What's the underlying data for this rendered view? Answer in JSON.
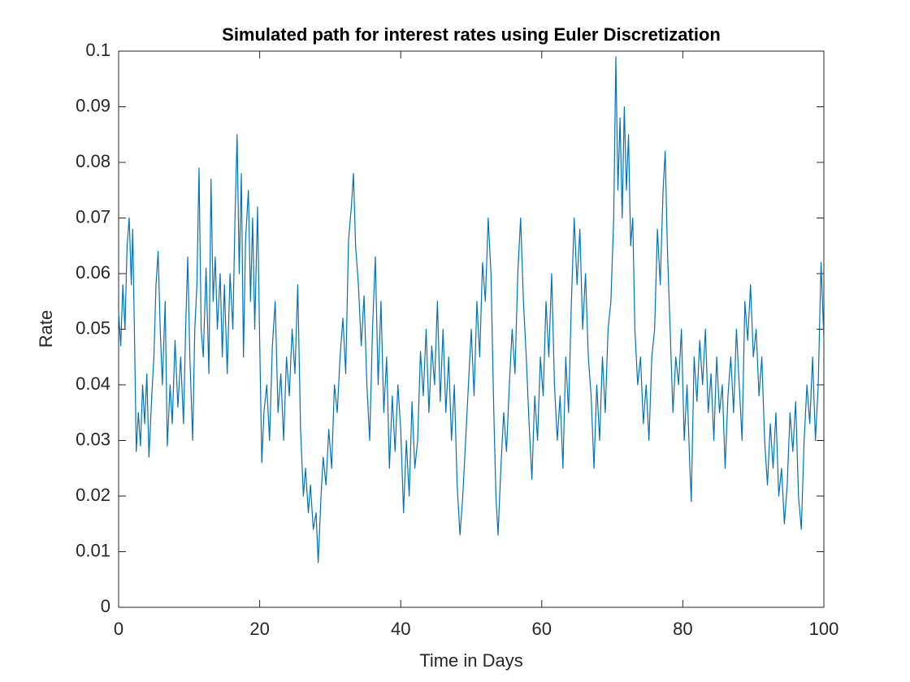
{
  "chart_data": {
    "type": "line",
    "title": "Simulated path for interest rates using Euler Discretization",
    "x_label": "Time in Days",
    "y_label": "Rate",
    "color": "#0072bd",
    "xlim": [
      0,
      100
    ],
    "xticks": [
      0,
      20,
      40,
      60,
      80,
      100
    ],
    "ylim": [
      0,
      0.1
    ],
    "yticks": [
      0,
      0.01,
      0.02,
      0.03,
      0.04,
      0.05,
      0.06,
      0.07,
      0.08,
      0.09,
      0.1
    ],
    "grid": false,
    "x": [
      0,
      0.3,
      0.6,
      0.9,
      1.2,
      1.5,
      1.8,
      2.0,
      2.3,
      2.5,
      2.8,
      3.1,
      3.4,
      3.7,
      4.0,
      4.3,
      4.7,
      5.0,
      5.3,
      5.6,
      5.9,
      6.2,
      6.6,
      6.9,
      7.3,
      7.6,
      8.0,
      8.4,
      8.8,
      9.2,
      9.5,
      9.8,
      10.1,
      10.5,
      10.8,
      11.1,
      11.4,
      11.7,
      12.0,
      12.4,
      12.8,
      13.1,
      13.4,
      13.7,
      14.0,
      14.4,
      14.7,
      15.0,
      15.4,
      15.8,
      16.2,
      16.5,
      16.8,
      17.1,
      17.4,
      17.7,
      18.0,
      18.4,
      18.7,
      19.0,
      19.3,
      19.7,
      20.0,
      20.3,
      20.6,
      21.0,
      21.4,
      21.8,
      22.2,
      22.6,
      23.0,
      23.4,
      23.8,
      24.2,
      24.6,
      25.0,
      25.4,
      25.8,
      26.2,
      26.5,
      26.9,
      27.2,
      27.6,
      28.0,
      28.3,
      28.7,
      29.0,
      29.4,
      29.8,
      30.2,
      30.6,
      31.0,
      31.4,
      31.8,
      32.2,
      32.6,
      33.0,
      33.3,
      33.6,
      34.0,
      34.4,
      34.8,
      35.2,
      35.6,
      36.0,
      36.4,
      36.8,
      37.2,
      37.6,
      38.0,
      38.4,
      38.8,
      39.2,
      39.6,
      40.0,
      40.4,
      40.8,
      41.2,
      41.6,
      42.0,
      42.4,
      42.8,
      43.2,
      43.6,
      44.0,
      44.4,
      44.8,
      45.2,
      45.6,
      46.0,
      46.4,
      46.8,
      47.2,
      47.6,
      48.0,
      48.4,
      48.8,
      49.2,
      49.6,
      50.0,
      50.4,
      50.8,
      51.2,
      51.6,
      52.0,
      52.4,
      52.8,
      53.2,
      53.5,
      53.8,
      54.2,
      54.6,
      55.0,
      55.4,
      55.8,
      56.2,
      56.6,
      57.0,
      57.4,
      57.8,
      58.2,
      58.6,
      59.0,
      59.4,
      59.8,
      60.2,
      60.6,
      61.0,
      61.4,
      61.8,
      62.2,
      62.6,
      63.0,
      63.4,
      63.8,
      64.2,
      64.6,
      65.0,
      65.4,
      65.8,
      66.2,
      66.6,
      67.0,
      67.4,
      67.8,
      68.2,
      68.6,
      69.0,
      69.4,
      69.8,
      70.2,
      70.5,
      70.8,
      71.1,
      71.4,
      71.7,
      72.0,
      72.3,
      72.6,
      72.9,
      73.2,
      73.6,
      74.0,
      74.4,
      74.8,
      75.2,
      75.6,
      76.0,
      76.4,
      76.8,
      77.2,
      77.5,
      77.8,
      78.2,
      78.6,
      79.0,
      79.4,
      79.8,
      80.2,
      80.6,
      81.0,
      81.2,
      81.6,
      82.0,
      82.4,
      82.8,
      83.2,
      83.6,
      84.0,
      84.4,
      84.8,
      85.2,
      85.6,
      86.0,
      86.4,
      86.8,
      87.2,
      87.6,
      88.0,
      88.4,
      88.8,
      89.2,
      89.6,
      90.0,
      90.4,
      90.8,
      91.2,
      91.6,
      92.0,
      92.4,
      92.8,
      93.2,
      93.6,
      94.0,
      94.4,
      94.8,
      95.2,
      95.6,
      96.0,
      96.4,
      96.8,
      97.2,
      97.6,
      98.0,
      98.4,
      98.8,
      99.2,
      99.6,
      100
    ],
    "values": [
      0.053,
      0.047,
      0.058,
      0.05,
      0.065,
      0.07,
      0.058,
      0.068,
      0.045,
      0.028,
      0.035,
      0.029,
      0.04,
      0.033,
      0.042,
      0.027,
      0.038,
      0.045,
      0.058,
      0.064,
      0.05,
      0.04,
      0.055,
      0.029,
      0.04,
      0.033,
      0.048,
      0.036,
      0.045,
      0.033,
      0.05,
      0.063,
      0.045,
      0.03,
      0.05,
      0.058,
      0.079,
      0.05,
      0.045,
      0.061,
      0.042,
      0.077,
      0.055,
      0.063,
      0.05,
      0.06,
      0.045,
      0.058,
      0.042,
      0.06,
      0.05,
      0.07,
      0.085,
      0.06,
      0.078,
      0.045,
      0.066,
      0.075,
      0.055,
      0.07,
      0.05,
      0.072,
      0.048,
      0.026,
      0.035,
      0.04,
      0.03,
      0.047,
      0.055,
      0.035,
      0.042,
      0.03,
      0.045,
      0.038,
      0.05,
      0.042,
      0.058,
      0.032,
      0.02,
      0.025,
      0.017,
      0.022,
      0.014,
      0.017,
      0.008,
      0.02,
      0.027,
      0.022,
      0.032,
      0.025,
      0.04,
      0.035,
      0.045,
      0.052,
      0.042,
      0.066,
      0.072,
      0.078,
      0.065,
      0.058,
      0.047,
      0.056,
      0.04,
      0.03,
      0.05,
      0.063,
      0.04,
      0.055,
      0.035,
      0.045,
      0.025,
      0.038,
      0.028,
      0.04,
      0.032,
      0.017,
      0.03,
      0.02,
      0.037,
      0.025,
      0.03,
      0.046,
      0.038,
      0.05,
      0.035,
      0.047,
      0.04,
      0.055,
      0.037,
      0.05,
      0.035,
      0.045,
      0.03,
      0.04,
      0.022,
      0.013,
      0.02,
      0.03,
      0.04,
      0.05,
      0.038,
      0.055,
      0.045,
      0.062,
      0.055,
      0.07,
      0.06,
      0.035,
      0.02,
      0.013,
      0.025,
      0.035,
      0.028,
      0.04,
      0.05,
      0.042,
      0.06,
      0.07,
      0.055,
      0.045,
      0.033,
      0.023,
      0.038,
      0.03,
      0.045,
      0.038,
      0.055,
      0.045,
      0.06,
      0.04,
      0.03,
      0.038,
      0.025,
      0.045,
      0.035,
      0.055,
      0.07,
      0.058,
      0.068,
      0.05,
      0.06,
      0.045,
      0.038,
      0.025,
      0.04,
      0.03,
      0.045,
      0.035,
      0.05,
      0.055,
      0.07,
      0.099,
      0.075,
      0.088,
      0.07,
      0.09,
      0.075,
      0.085,
      0.065,
      0.07,
      0.05,
      0.04,
      0.045,
      0.033,
      0.04,
      0.03,
      0.045,
      0.05,
      0.068,
      0.058,
      0.075,
      0.082,
      0.065,
      0.05,
      0.035,
      0.045,
      0.04,
      0.05,
      0.03,
      0.04,
      0.025,
      0.019,
      0.045,
      0.037,
      0.048,
      0.04,
      0.05,
      0.035,
      0.042,
      0.03,
      0.045,
      0.035,
      0.04,
      0.025,
      0.038,
      0.045,
      0.035,
      0.05,
      0.04,
      0.03,
      0.055,
      0.048,
      0.058,
      0.045,
      0.05,
      0.038,
      0.045,
      0.03,
      0.022,
      0.033,
      0.025,
      0.035,
      0.02,
      0.025,
      0.015,
      0.022,
      0.035,
      0.028,
      0.037,
      0.02,
      0.014,
      0.03,
      0.04,
      0.033,
      0.045,
      0.03,
      0.04,
      0.062,
      0.048
    ]
  }
}
